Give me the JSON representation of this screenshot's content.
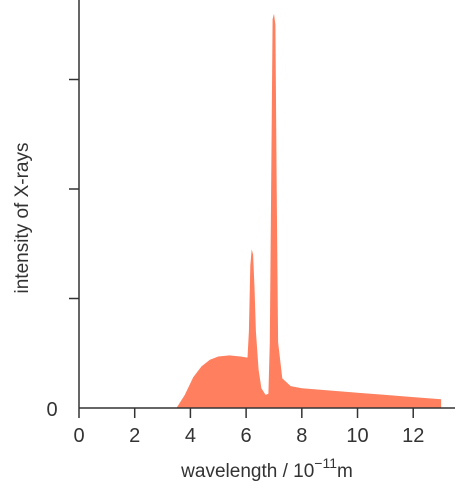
{
  "chart_data": {
    "type": "area",
    "title": "",
    "xlabel": "wavelength / 10",
    "xlabel_exponent": "−11",
    "xlabel_unit": "m",
    "ylabel": "intensity of X-rays",
    "xlim": [
      0,
      13.5
    ],
    "ylim": [
      0,
      3.6
    ],
    "x_ticks": [
      0,
      2,
      4,
      6,
      8,
      10,
      12
    ],
    "x_tick_labels": [
      "0",
      "2",
      "4",
      "6",
      "8",
      "10",
      12
    ],
    "y_ticks": [
      0,
      1,
      2,
      3
    ],
    "y_tick_labels": [
      "0"
    ],
    "grid": false,
    "fill_color": "#FF7F5F",
    "axis_color": "#333333",
    "series": [
      {
        "x": [
          3.5,
          3.8,
          4.1,
          4.4,
          4.7,
          5.0,
          5.4,
          5.8,
          6.05,
          6.1,
          6.15,
          6.2,
          6.25,
          6.3,
          6.35,
          6.45,
          6.55,
          6.7,
          6.8,
          6.85,
          6.95,
          7.0,
          7.05,
          7.1,
          7.15,
          7.3,
          7.6,
          8.0,
          9.0,
          10.0,
          11.0,
          12.0,
          13.0
        ],
        "y": [
          0,
          0.12,
          0.28,
          0.38,
          0.44,
          0.47,
          0.48,
          0.47,
          0.46,
          0.7,
          1.3,
          1.45,
          1.4,
          1.1,
          0.7,
          0.35,
          0.18,
          0.12,
          0.13,
          0.6,
          3.55,
          3.6,
          3.5,
          2.0,
          0.6,
          0.27,
          0.2,
          0.18,
          0.16,
          0.14,
          0.12,
          0.1,
          0.08
        ]
      }
    ]
  }
}
